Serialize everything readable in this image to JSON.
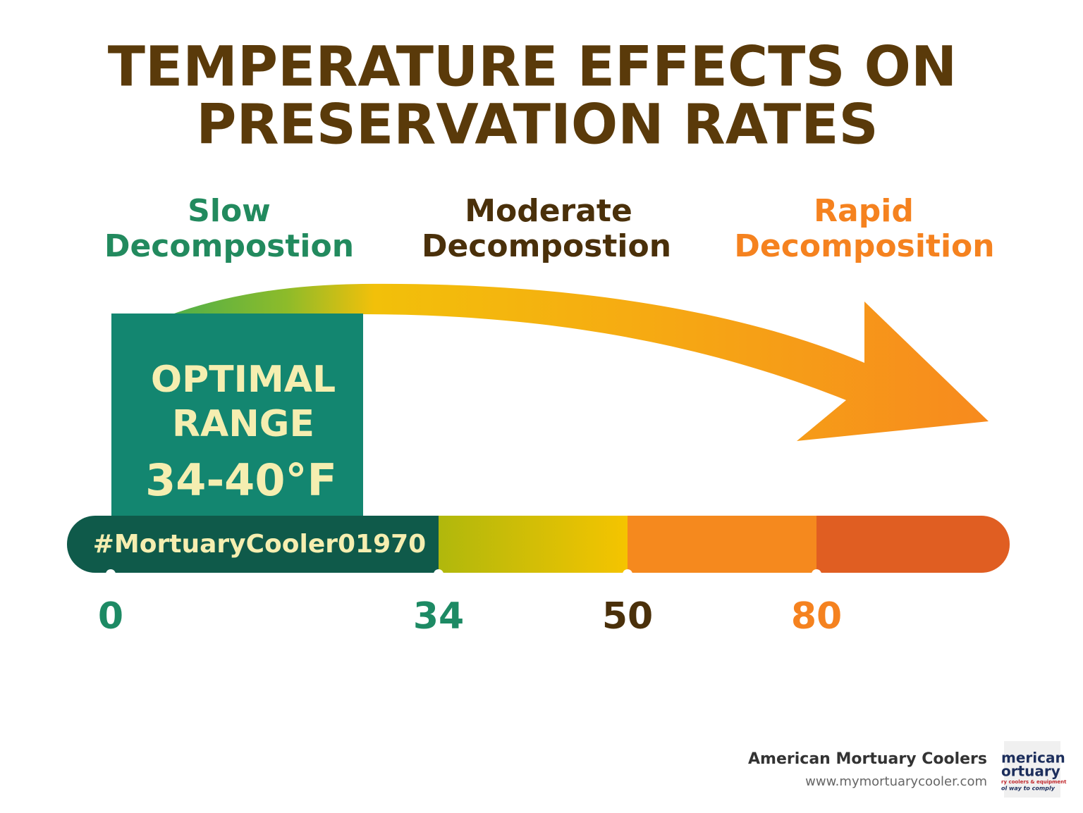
{
  "title_lines": [
    "TEMPERATURE EFFECTS ON",
    "PRESERVATION RATES"
  ],
  "zones": [
    {
      "lines": [
        "Slow",
        "Decompostion"
      ]
    },
    {
      "lines": [
        "Moderate",
        "Decompostion"
      ]
    },
    {
      "lines": [
        "Rapid",
        "Decomposition"
      ]
    }
  ],
  "optimal": {
    "lines": [
      "OPTIMAL",
      "RANGE"
    ],
    "range": "34-40°F"
  },
  "tag": "#MortuaryCooler01970",
  "scale_labels": [
    0,
    34,
    50,
    80
  ],
  "footer": {
    "company": "American Mortuary Coolers",
    "url": "www.mymortuarycooler.com",
    "logo_lines": [
      "merican",
      "ortuary",
      "ry coolers & equipment",
      "ol way to comply"
    ]
  }
}
